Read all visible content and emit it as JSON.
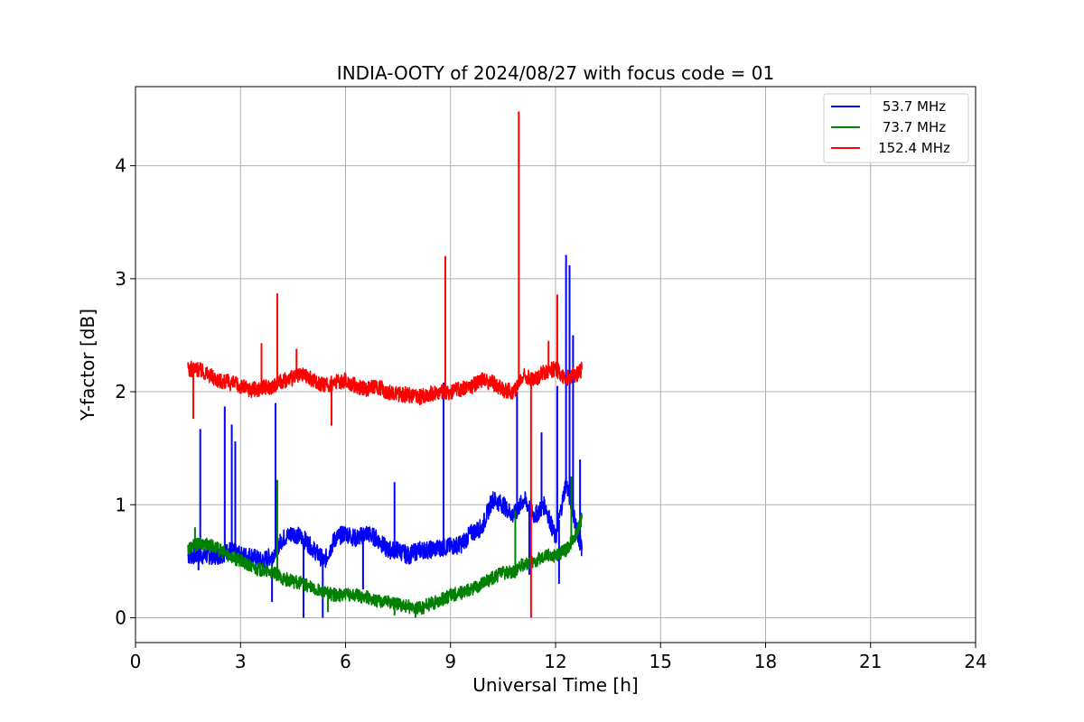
{
  "chart_data": {
    "type": "line",
    "title": "INDIA-OOTY of 2024/08/27 with focus code = 01",
    "xlabel": "Universal Time [h]",
    "ylabel": "Y-factor [dB]",
    "xlim": [
      0,
      24
    ],
    "ylim": [
      -0.22,
      4.7
    ],
    "xticks": [
      0,
      3,
      6,
      9,
      12,
      15,
      18,
      21,
      24
    ],
    "yticks": [
      0,
      1,
      2,
      3,
      4
    ],
    "grid": true,
    "legend_position": "top-right",
    "series": [
      {
        "name": "53.7 MHz",
        "color": "#0000ff",
        "x": [
          1.5,
          1.8,
          2.1,
          2.4,
          2.7,
          3.0,
          3.3,
          3.6,
          3.9,
          4.2,
          4.5,
          4.8,
          5.1,
          5.4,
          5.7,
          6.0,
          6.3,
          6.6,
          6.9,
          7.2,
          7.5,
          7.8,
          8.1,
          8.4,
          8.7,
          9.0,
          9.3,
          9.6,
          9.9,
          10.2,
          10.5,
          10.8,
          11.1,
          11.4,
          11.7,
          12.0,
          12.3,
          12.6,
          12.75
        ],
        "values": [
          0.55,
          0.55,
          0.55,
          0.55,
          0.6,
          0.55,
          0.55,
          0.5,
          0.55,
          0.7,
          0.75,
          0.7,
          0.6,
          0.5,
          0.7,
          0.75,
          0.7,
          0.75,
          0.7,
          0.6,
          0.6,
          0.55,
          0.6,
          0.6,
          0.62,
          0.63,
          0.65,
          0.75,
          0.8,
          1.05,
          1.0,
          0.9,
          1.05,
          0.9,
          1.0,
          0.7,
          1.2,
          0.8,
          0.6
        ],
        "spikes": [
          {
            "x": 1.85,
            "y": 1.67
          },
          {
            "x": 2.55,
            "y": 1.87
          },
          {
            "x": 2.75,
            "y": 1.71
          },
          {
            "x": 2.85,
            "y": 1.56
          },
          {
            "x": 4.0,
            "y": 1.9
          },
          {
            "x": 7.4,
            "y": 1.2
          },
          {
            "x": 8.8,
            "y": 2.08
          },
          {
            "x": 10.9,
            "y": 2.0
          },
          {
            "x": 11.6,
            "y": 1.64
          },
          {
            "x": 12.05,
            "y": 2.05
          },
          {
            "x": 12.3,
            "y": 3.21
          },
          {
            "x": 12.4,
            "y": 3.12
          },
          {
            "x": 12.5,
            "y": 2.5
          },
          {
            "x": 12.7,
            "y": 1.4
          }
        ],
        "dips": [
          {
            "x": 1.8,
            "y": 0.42
          },
          {
            "x": 3.9,
            "y": 0.14
          },
          {
            "x": 4.8,
            "y": 0.0
          },
          {
            "x": 5.35,
            "y": 0.0
          },
          {
            "x": 6.5,
            "y": 0.25
          },
          {
            "x": 11.25,
            "y": 0.38
          },
          {
            "x": 12.1,
            "y": 0.3
          }
        ]
      },
      {
        "name": "73.7 MHz",
        "color": "#008000",
        "x": [
          1.5,
          1.8,
          2.1,
          2.4,
          2.7,
          3.0,
          3.3,
          3.6,
          3.9,
          4.2,
          4.5,
          4.8,
          5.1,
          5.4,
          5.7,
          6.0,
          6.3,
          6.6,
          6.9,
          7.2,
          7.5,
          7.8,
          8.1,
          8.4,
          8.7,
          9.0,
          9.3,
          9.6,
          9.9,
          10.2,
          10.5,
          10.8,
          11.1,
          11.4,
          11.7,
          12.0,
          12.3,
          12.6,
          12.75
        ],
        "values": [
          0.62,
          0.65,
          0.65,
          0.6,
          0.55,
          0.5,
          0.45,
          0.42,
          0.4,
          0.35,
          0.32,
          0.3,
          0.25,
          0.22,
          0.2,
          0.2,
          0.2,
          0.18,
          0.15,
          0.15,
          0.12,
          0.1,
          0.08,
          0.12,
          0.15,
          0.2,
          0.22,
          0.25,
          0.3,
          0.35,
          0.4,
          0.4,
          0.48,
          0.5,
          0.55,
          0.55,
          0.6,
          0.75,
          0.88
        ],
        "spikes": [
          {
            "x": 1.7,
            "y": 0.8
          },
          {
            "x": 4.05,
            "y": 1.22
          },
          {
            "x": 10.85,
            "y": 0.95
          },
          {
            "x": 12.45,
            "y": 1.25
          }
        ],
        "dips": [
          {
            "x": 5.5,
            "y": 0.05
          },
          {
            "x": 7.4,
            "y": 0.02
          },
          {
            "x": 8.0,
            "y": 0.0
          }
        ]
      },
      {
        "name": "152.4 MHz",
        "color": "#ff0000",
        "x": [
          1.5,
          1.8,
          2.1,
          2.4,
          2.7,
          3.0,
          3.3,
          3.6,
          3.9,
          4.2,
          4.5,
          4.8,
          5.1,
          5.4,
          5.7,
          6.0,
          6.3,
          6.6,
          6.9,
          7.2,
          7.5,
          7.8,
          8.1,
          8.4,
          8.7,
          9.0,
          9.3,
          9.6,
          9.9,
          10.2,
          10.5,
          10.8,
          11.1,
          11.4,
          11.7,
          12.0,
          12.3,
          12.6,
          12.75
        ],
        "values": [
          2.2,
          2.2,
          2.15,
          2.1,
          2.08,
          2.05,
          2.02,
          2.03,
          2.05,
          2.1,
          2.12,
          2.15,
          2.1,
          2.05,
          2.08,
          2.1,
          2.05,
          2.02,
          2.05,
          2.0,
          1.98,
          1.97,
          1.95,
          1.98,
          2.0,
          2.0,
          2.02,
          2.05,
          2.1,
          2.08,
          2.02,
          2.0,
          2.15,
          2.1,
          2.18,
          2.2,
          2.12,
          2.15,
          2.2
        ],
        "spikes": [
          {
            "x": 3.6,
            "y": 2.43
          },
          {
            "x": 4.05,
            "y": 2.87
          },
          {
            "x": 4.6,
            "y": 2.38
          },
          {
            "x": 8.85,
            "y": 3.2
          },
          {
            "x": 10.95,
            "y": 4.48
          },
          {
            "x": 11.8,
            "y": 2.45
          },
          {
            "x": 12.05,
            "y": 2.86
          }
        ],
        "dips": [
          {
            "x": 1.65,
            "y": 1.76
          },
          {
            "x": 5.6,
            "y": 1.7
          },
          {
            "x": 11.3,
            "y": 0.0
          }
        ]
      }
    ]
  }
}
